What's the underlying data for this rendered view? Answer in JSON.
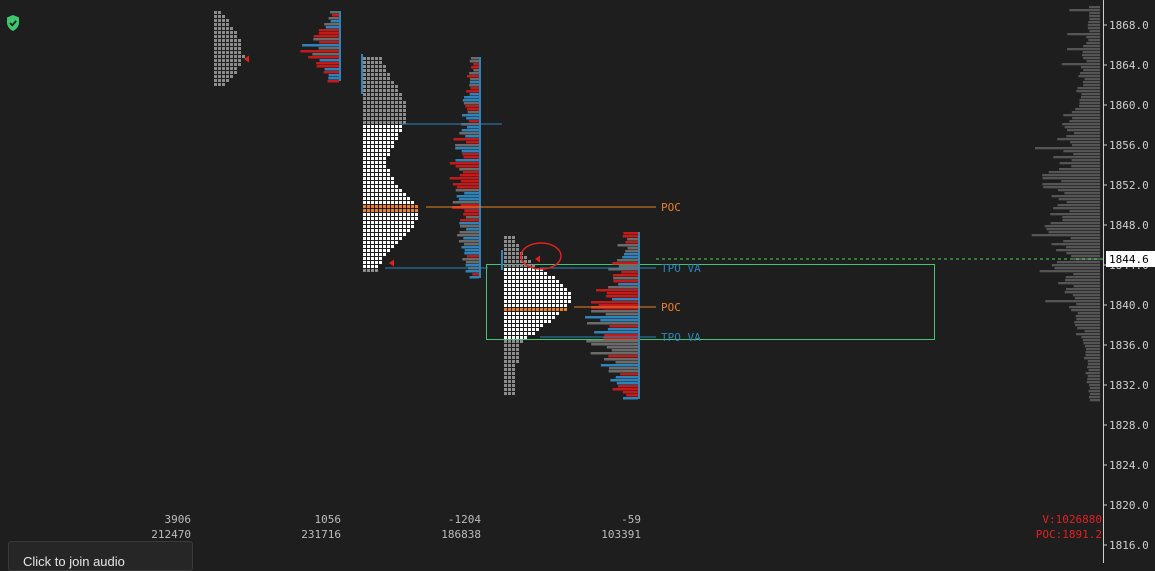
{
  "chart_data": {
    "type": "market-profile",
    "y_axis": {
      "ticks": [
        "1868.0",
        "1864.0",
        "1860.0",
        "1856.0",
        "1852.0",
        "1848.0",
        "1844.0",
        "1840.0",
        "1836.0",
        "1832.0",
        "1828.0",
        "1824.0",
        "1820.0",
        "1816.0"
      ],
      "tick_values": [
        1868,
        1864,
        1860,
        1856,
        1852,
        1848,
        1844,
        1840,
        1836,
        1832,
        1828,
        1824,
        1820,
        1816
      ],
      "range": [
        1815.5,
        1869.5
      ],
      "current_price_label": "1844.6",
      "current_price": 1844.6
    },
    "sessions": [
      {
        "delta": "3906",
        "volume": "212470"
      },
      {
        "delta": "1056",
        "volume": "231716"
      },
      {
        "delta": "-1204",
        "volume": "186838"
      },
      {
        "delta": "-59",
        "volume": "103391"
      }
    ],
    "profiles": [
      {
        "price_high": 1869.4,
        "price_low": 1862.2,
        "poc_marker": 1864.6
      },
      {
        "price_high": 1869.4,
        "price_low": 1862.4
      },
      {
        "price_high": 1864.8,
        "price_low": 1843.2,
        "poc": 1849.8,
        "poc_label": "POC",
        "va_high": 1858.1,
        "va_low": 1843.7,
        "marker": 1844.2
      },
      {
        "price_high": 1864.8,
        "price_low": 1842.7
      },
      {
        "price_high": 1846.9,
        "price_low": 1830.9,
        "poc": 1839.8,
        "poc_label": "POC",
        "va_high_label": "TPO VA",
        "va_high": 1843.7,
        "va_low_label": "TPO VA",
        "va_low": 1836.8,
        "marker": 1844.6
      },
      {
        "price_high": 1847.3,
        "price_low": 1830.6
      }
    ],
    "highlight_box": {
      "price_top": 1844.0,
      "price_bottom": 1836.5
    },
    "footer_stats": {
      "volume_label": "V:1026880",
      "poc_label": "POC:1891.2"
    }
  },
  "colors": {
    "background": "#1e1e1e",
    "tpo_gray": "#8c8c8c",
    "tpo_white": "#ffffff",
    "volume_blue": "#2f83b8",
    "volume_red": "#c41a1a",
    "volume_gray": "#6b6b6b",
    "poc_orange": "#e8822a",
    "va_blue": "#2f83b8",
    "accent_green": "#3fc770",
    "current_price_dash": "#4fd44f",
    "marker_red": "#e02020"
  },
  "icons": {
    "status": "shield-check-icon"
  },
  "popup": {
    "label": "Click to join audio"
  }
}
